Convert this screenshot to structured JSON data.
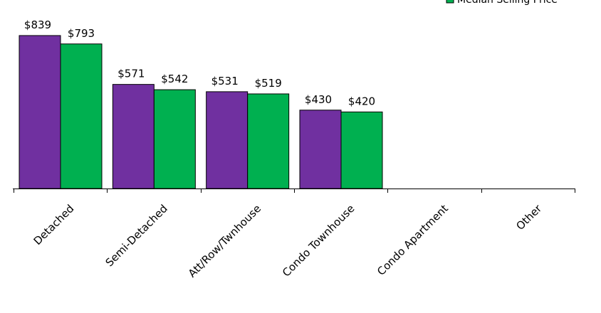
{
  "chart_data": {
    "type": "bar",
    "categories": [
      "Detached",
      "Semi-Detached",
      "Att/Row/Twnhouse",
      "Condo Townhouse",
      "Condo Apartment",
      "Other"
    ],
    "series": [
      {
        "name": "",
        "color": "#7030a0",
        "values": [
          839,
          571,
          531,
          430,
          null,
          null
        ]
      },
      {
        "name": "Median Selling Price",
        "color": "#00b050",
        "values": [
          793,
          542,
          519,
          420,
          null,
          null
        ]
      }
    ],
    "data_labels": [
      [
        "$839",
        "$571",
        "$531",
        "$430",
        "",
        ""
      ],
      [
        "$793",
        "$542",
        "$519",
        "$420",
        "",
        ""
      ]
    ],
    "value_axis_visible": false,
    "grid": false,
    "legend_position": "top-right",
    "title": "",
    "xlabel": "",
    "ylabel": ""
  }
}
